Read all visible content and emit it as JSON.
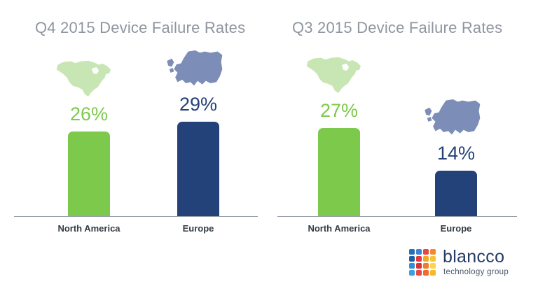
{
  "colors": {
    "north_america": "#7dc94b",
    "europe": "#24427a",
    "na_map": "#c8e6b4",
    "eu_map": "#7c8db7",
    "title": "#8f96a0"
  },
  "chart_data": [
    {
      "type": "bar",
      "title": "Q4 2015 Device Failure Rates",
      "categories": [
        "North America",
        "Europe"
      ],
      "values": [
        26,
        29
      ],
      "value_labels": [
        "26%",
        "29%"
      ],
      "unit": "%",
      "ylim": [
        0,
        45
      ],
      "grid": false,
      "icons": [
        "north-america-map",
        "europe-map"
      ]
    },
    {
      "type": "bar",
      "title": "Q3 2015 Device Failure Rates",
      "categories": [
        "North America",
        "Europe"
      ],
      "values": [
        27,
        14
      ],
      "value_labels": [
        "27%",
        "14%"
      ],
      "unit": "%",
      "ylim": [
        0,
        45
      ],
      "grid": false,
      "icons": [
        "north-america-map",
        "europe-map"
      ]
    }
  ],
  "logo": {
    "name": "blancco",
    "tagline": "technology group"
  }
}
